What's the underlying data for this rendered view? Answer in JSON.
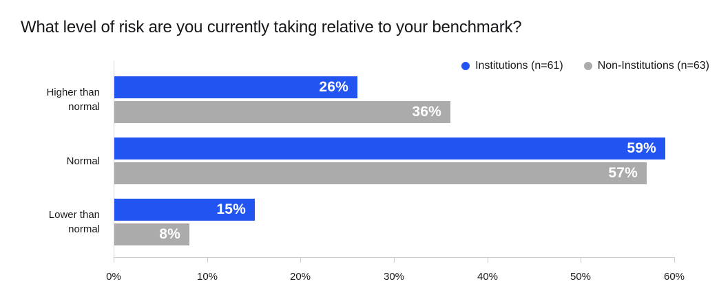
{
  "title": "What level of risk are you currently taking relative to your benchmark?",
  "legend": [
    {
      "label": "Institutions (n=61)",
      "color": "#2254f2"
    },
    {
      "label": "Non-Institutions (n=63)",
      "color": "#ababab"
    }
  ],
  "chart_data": {
    "type": "bar",
    "orientation": "horizontal",
    "title": "What level of risk are you currently taking relative to your benchmark?",
    "categories": [
      "Higher than normal",
      "Normal",
      "Lower than normal"
    ],
    "series": [
      {
        "name": "Institutions (n=61)",
        "color": "#2254f2",
        "values": [
          26,
          59,
          15
        ]
      },
      {
        "name": "Non-Institutions (n=63)",
        "color": "#ababab",
        "values": [
          36,
          57,
          8
        ]
      }
    ],
    "value_suffix": "%",
    "xlim": [
      0,
      60
    ],
    "x_ticks": [
      "0%",
      "10%",
      "20%",
      "30%",
      "40%",
      "50%",
      "60%"
    ],
    "xlabel": "",
    "ylabel": "",
    "grid": false,
    "legend_position": "top-right",
    "value_labels_color": "#ffffff"
  }
}
